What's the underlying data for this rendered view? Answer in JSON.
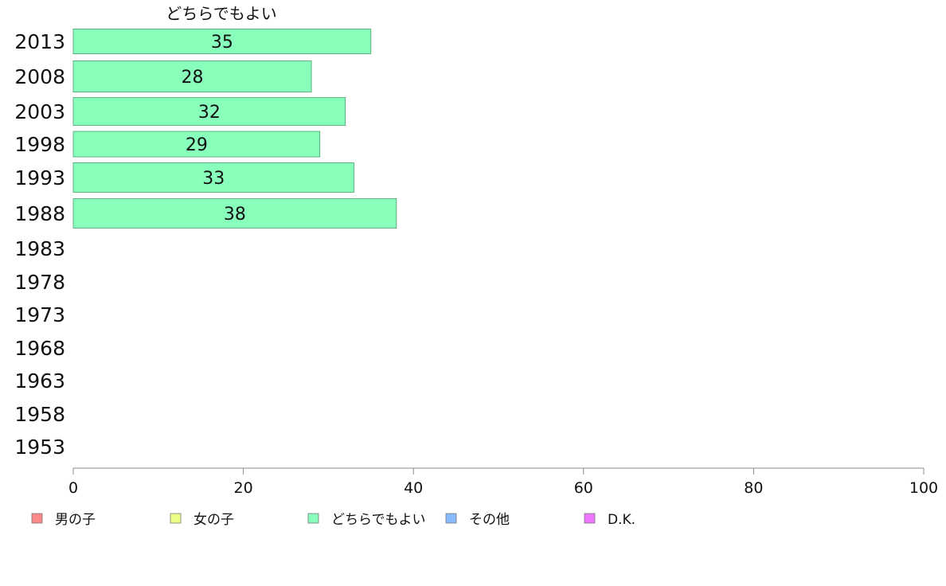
{
  "chart_data": {
    "type": "bar",
    "orientation": "horizontal",
    "series_title": "どちらでもよい",
    "categories": [
      "2013",
      "2008",
      "2003",
      "1998",
      "1993",
      "1988",
      "1983",
      "1978",
      "1973",
      "1968",
      "1963",
      "1958",
      "1953"
    ],
    "series": [
      {
        "name": "どちらでもよい",
        "color": "#88ffbb",
        "values": [
          35,
          28,
          32,
          29,
          33,
          38,
          null,
          null,
          null,
          null,
          null,
          null,
          null
        ],
        "labels": [
          "35",
          "28",
          "32",
          "29",
          "33",
          "38",
          "",
          "",
          "",
          "",
          "",
          "",
          ""
        ]
      }
    ],
    "xlim": [
      0,
      100
    ],
    "xticks": [
      0,
      20,
      40,
      60,
      80,
      100
    ],
    "xtick_labels": [
      "0",
      "20",
      "40",
      "60",
      "80",
      "100"
    ],
    "grid": false,
    "legend_position": "bottom",
    "legend": [
      {
        "label": "男の子",
        "color": "#ff8888"
      },
      {
        "label": "女の子",
        "color": "#eeff88"
      },
      {
        "label": "どちらでもよい",
        "color": "#88ffbb"
      },
      {
        "label": "その他",
        "color": "#88bbff"
      },
      {
        "label": "D.K.",
        "color": "#ee77ff"
      }
    ]
  }
}
